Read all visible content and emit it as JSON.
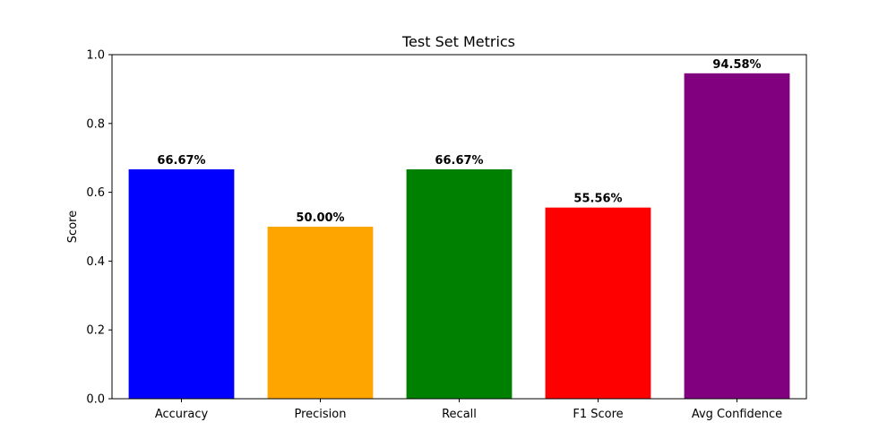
{
  "chart_data": {
    "type": "bar",
    "title": "Test Set Metrics",
    "xlabel": "",
    "ylabel": "Score",
    "ylim": [
      0,
      1.0
    ],
    "yticks": [
      "0.0",
      "0.2",
      "0.4",
      "0.6",
      "0.8",
      "1.0"
    ],
    "grid": false,
    "categories": [
      "Accuracy",
      "Precision",
      "Recall",
      "F1 Score",
      "Avg Confidence"
    ],
    "values": [
      0.6667,
      0.5,
      0.6667,
      0.5556,
      0.9458
    ],
    "data_labels": [
      "66.67%",
      "50.00%",
      "66.67%",
      "55.56%",
      "94.58%"
    ],
    "colors": [
      "#0000ff",
      "#ffa500",
      "#008000",
      "#ff0000",
      "#800080"
    ]
  }
}
